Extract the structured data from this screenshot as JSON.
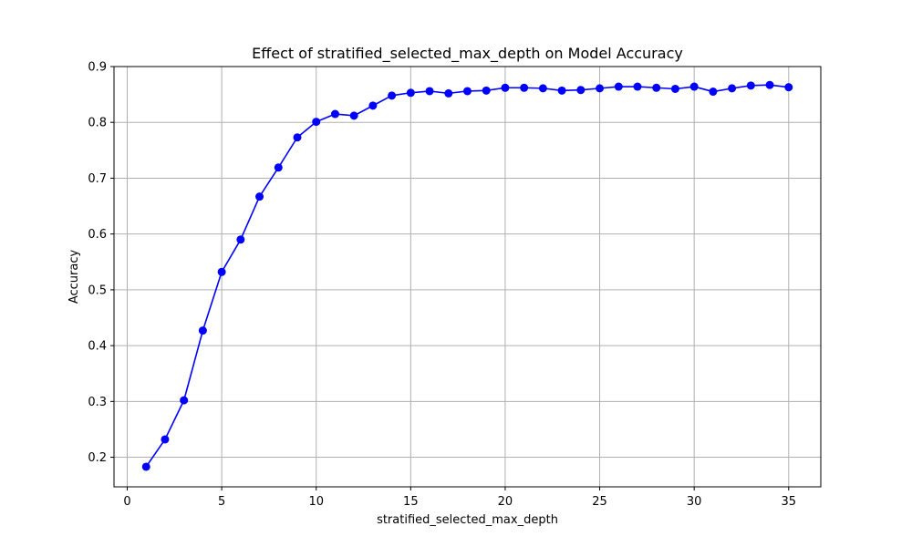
{
  "chart_data": {
    "type": "line",
    "title": "Effect of stratified_selected_max_depth on Model Accuracy",
    "xlabel": "stratified_selected_max_depth",
    "ylabel": "Accuracy",
    "xlim": [
      -0.7,
      36.7
    ],
    "ylim": [
      0.147,
      0.9
    ],
    "xticks": [
      0,
      5,
      10,
      15,
      20,
      25,
      30,
      35
    ],
    "yticks": [
      0.2,
      0.3,
      0.4,
      0.5,
      0.6,
      0.7,
      0.8,
      0.9
    ],
    "xtick_labels": [
      "0",
      "5",
      "10",
      "15",
      "20",
      "25",
      "30",
      "35"
    ],
    "ytick_labels": [
      "0.2",
      "0.3",
      "0.4",
      "0.5",
      "0.6",
      "0.7",
      "0.8",
      "0.9"
    ],
    "grid": true,
    "series": [
      {
        "name": "Accuracy",
        "color": "#0000ff",
        "x": [
          1,
          2,
          3,
          4,
          5,
          6,
          7,
          8,
          9,
          10,
          11,
          12,
          13,
          14,
          15,
          16,
          17,
          18,
          19,
          20,
          21,
          22,
          23,
          24,
          25,
          26,
          27,
          28,
          29,
          30,
          31,
          32,
          33,
          34,
          35
        ],
        "values": [
          0.183,
          0.232,
          0.302,
          0.427,
          0.532,
          0.59,
          0.667,
          0.719,
          0.773,
          0.801,
          0.815,
          0.812,
          0.83,
          0.848,
          0.853,
          0.856,
          0.852,
          0.856,
          0.857,
          0.862,
          0.862,
          0.861,
          0.857,
          0.858,
          0.861,
          0.864,
          0.864,
          0.862,
          0.86,
          0.864,
          0.855,
          0.861,
          0.866,
          0.867,
          0.863
        ]
      }
    ]
  }
}
